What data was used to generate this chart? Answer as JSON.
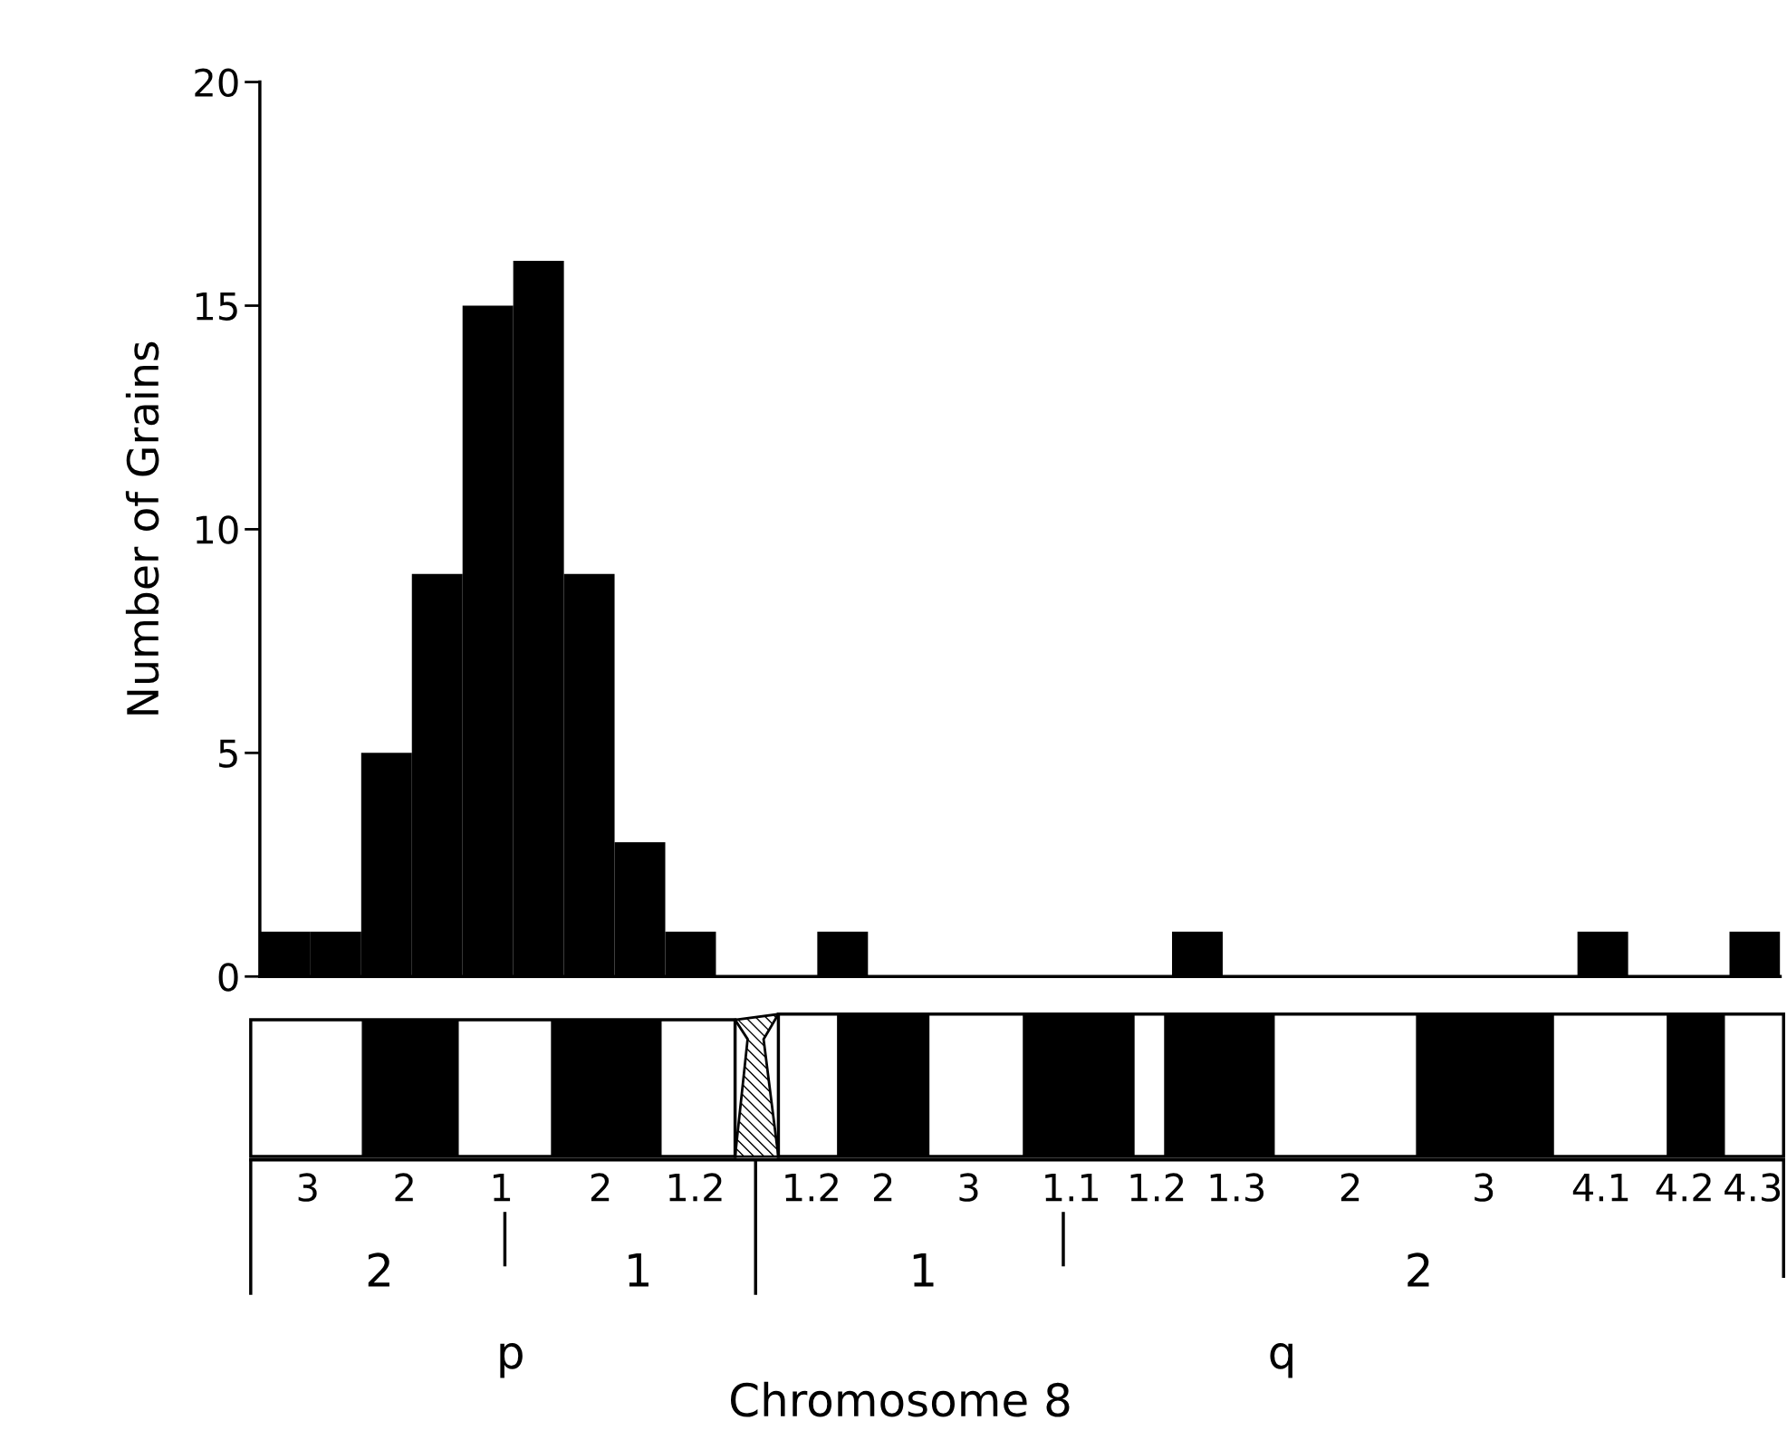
{
  "chart_data": {
    "type": "bar",
    "ylabel": "Number of Grains",
    "categories": [
      null,
      null,
      null,
      null,
      null,
      null,
      null,
      null,
      null,
      null,
      null,
      null,
      null,
      null,
      null,
      null,
      null,
      null,
      null,
      null,
      null,
      null,
      null,
      null,
      null,
      null,
      null,
      null,
      null,
      null
    ],
    "series": [
      {
        "color": "#000000",
        "values": [
          1,
          1,
          5,
          9,
          15,
          16,
          9,
          3,
          1,
          0,
          0,
          1,
          0,
          0,
          0,
          0,
          0,
          0,
          1,
          0,
          0,
          0,
          0,
          0,
          0,
          0,
          1,
          0,
          0,
          1
        ]
      }
    ],
    "ylim": [
      0,
      20
    ],
    "yticks": [
      0,
      5,
      10,
      15,
      20
    ],
    "grid": false,
    "legend": false,
    "tick_labels": "y",
    "annotations": [
      "3",
      "2",
      "1",
      "2",
      "1.2",
      "1.2",
      "2",
      "3",
      "1.1",
      "1.2",
      "1.3",
      "2",
      "3",
      "4.1",
      "4.2",
      "4.3",
      "2",
      "1",
      "1",
      "2",
      "p",
      "q",
      "Chromosome 8"
    ]
  }
}
